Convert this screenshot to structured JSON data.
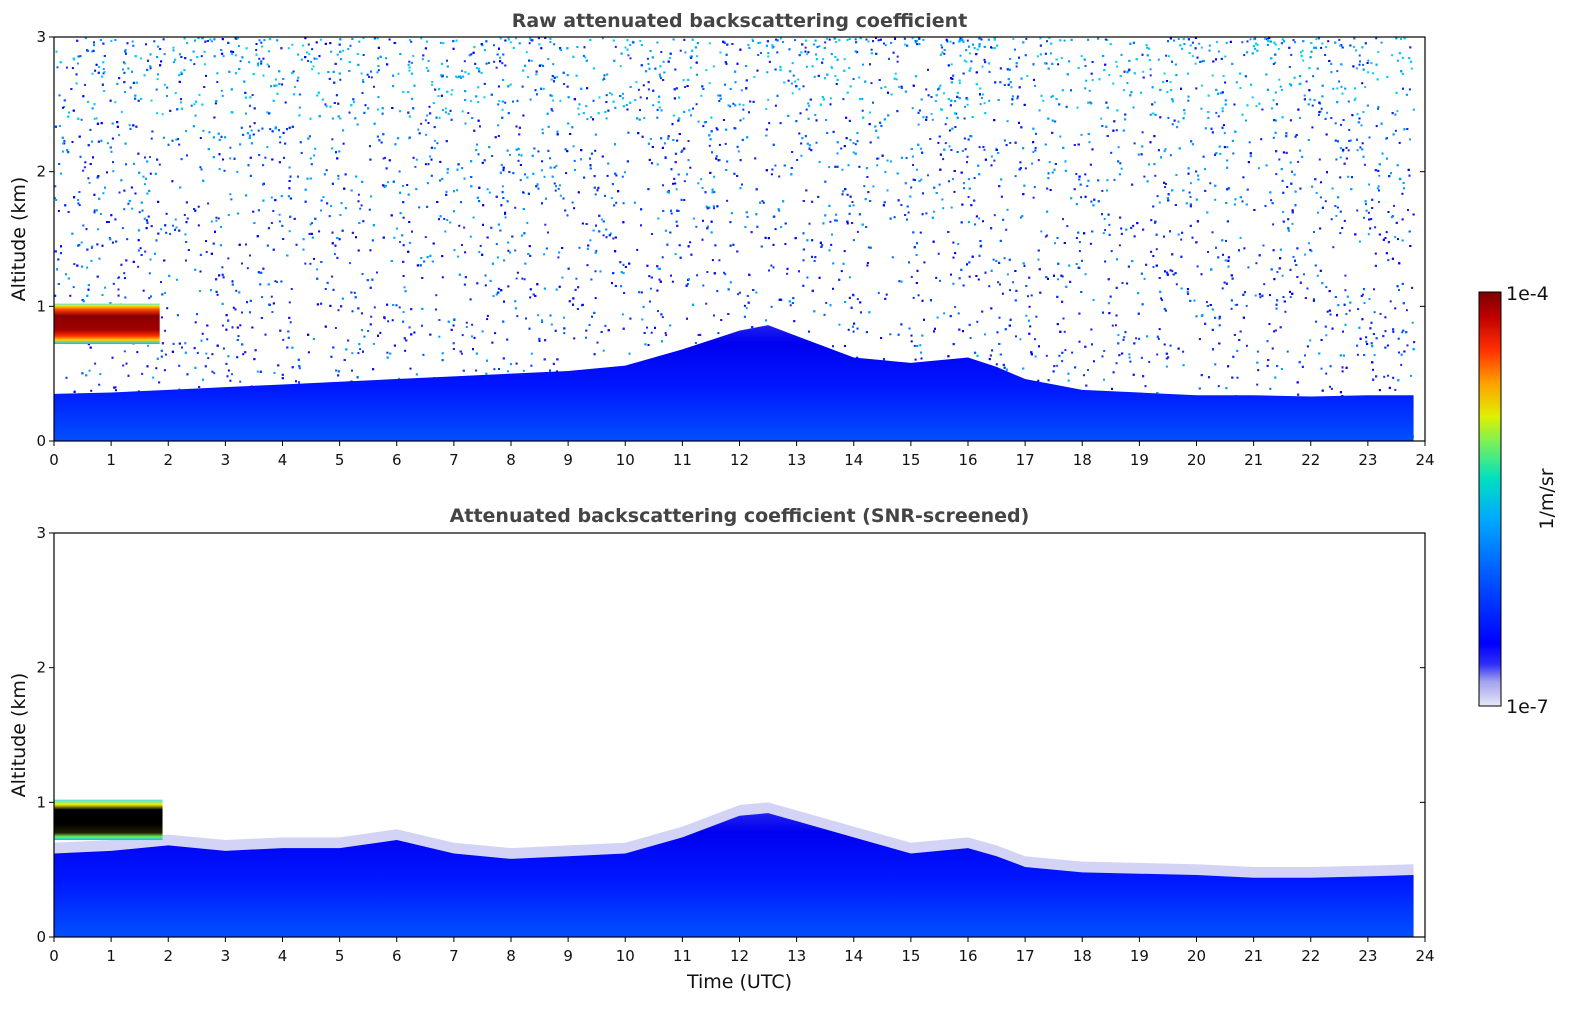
{
  "chart_data": [
    {
      "type": "heatmap",
      "title": "Raw attenuated backscattering coefficient",
      "xlabel": "",
      "ylabel": "Altitude (km)",
      "xlim": [
        0,
        24
      ],
      "ylim": [
        0,
        3
      ],
      "x_ticks": [
        "0",
        "1",
        "2",
        "3",
        "4",
        "5",
        "6",
        "7",
        "8",
        "9",
        "10",
        "11",
        "12",
        "13",
        "14",
        "15",
        "16",
        "17",
        "18",
        "19",
        "20",
        "21",
        "22",
        "23",
        "24"
      ],
      "y_ticks": [
        "0",
        "1",
        "2",
        "3"
      ],
      "data_end_time": 23.8,
      "noisy_upper_region": true,
      "boundary_layer_top_km": [
        [
          0,
          0.35
        ],
        [
          1,
          0.36
        ],
        [
          2,
          0.38
        ],
        [
          3,
          0.4
        ],
        [
          4,
          0.42
        ],
        [
          5,
          0.44
        ],
        [
          6,
          0.46
        ],
        [
          7,
          0.48
        ],
        [
          8,
          0.5
        ],
        [
          9,
          0.52
        ],
        [
          10,
          0.56
        ],
        [
          11,
          0.68
        ],
        [
          12,
          0.82
        ],
        [
          12.5,
          0.86
        ],
        [
          13,
          0.78
        ],
        [
          14,
          0.62
        ],
        [
          15,
          0.58
        ],
        [
          16,
          0.62
        ],
        [
          16.5,
          0.55
        ],
        [
          17,
          0.46
        ],
        [
          18,
          0.38
        ],
        [
          19,
          0.36
        ],
        [
          20,
          0.34
        ],
        [
          21,
          0.34
        ],
        [
          22,
          0.33
        ],
        [
          23,
          0.34
        ],
        [
          23.8,
          0.34
        ]
      ],
      "cloud_layer": {
        "time_start": 0,
        "time_end": 1.85,
        "alt_bottom_km": 0.72,
        "alt_top_km": 1.02
      }
    },
    {
      "type": "heatmap",
      "title": "Attenuated backscattering coefficient (SNR-screened)",
      "xlabel": "Time (UTC)",
      "ylabel": "Altitude (km)",
      "xlim": [
        0,
        24
      ],
      "ylim": [
        0,
        3
      ],
      "x_ticks": [
        "0",
        "1",
        "2",
        "3",
        "4",
        "5",
        "6",
        "7",
        "8",
        "9",
        "10",
        "11",
        "12",
        "13",
        "14",
        "15",
        "16",
        "17",
        "18",
        "19",
        "20",
        "21",
        "22",
        "23",
        "24"
      ],
      "y_ticks": [
        "0",
        "1",
        "2",
        "3"
      ],
      "data_end_time": 23.8,
      "noisy_upper_region": false,
      "boundary_layer_top_km": [
        [
          0,
          0.62
        ],
        [
          1,
          0.64
        ],
        [
          2,
          0.68
        ],
        [
          3,
          0.64
        ],
        [
          4,
          0.66
        ],
        [
          5,
          0.66
        ],
        [
          6,
          0.72
        ],
        [
          7,
          0.62
        ],
        [
          8,
          0.58
        ],
        [
          9,
          0.6
        ],
        [
          10,
          0.62
        ],
        [
          11,
          0.74
        ],
        [
          12,
          0.9
        ],
        [
          12.5,
          0.92
        ],
        [
          13,
          0.86
        ],
        [
          14,
          0.74
        ],
        [
          15,
          0.62
        ],
        [
          16,
          0.66
        ],
        [
          16.5,
          0.6
        ],
        [
          17,
          0.52
        ],
        [
          18,
          0.48
        ],
        [
          19,
          0.47
        ],
        [
          20,
          0.46
        ],
        [
          21,
          0.44
        ],
        [
          22,
          0.44
        ],
        [
          23,
          0.45
        ],
        [
          23.8,
          0.46
        ]
      ],
      "cloud_layer": {
        "time_start": 0,
        "time_end": 1.9,
        "alt_bottom_km": 0.72,
        "alt_top_km": 1.02
      }
    }
  ],
  "colorbar": {
    "label": "1/m/sr",
    "min_label": "1e-7",
    "max_label": "1e-4",
    "colors": [
      "#e8e8f8",
      "#c8c8f0",
      "#a0a0ee",
      "#7070f0",
      "#3030f8",
      "#0000ff",
      "#0030ff",
      "#0060ff",
      "#00a0ff",
      "#00d0f0",
      "#00e0b0",
      "#40f070",
      "#a0f030",
      "#e0f000",
      "#ffc000",
      "#ff8000",
      "#ff3000",
      "#e00000",
      "#b00000",
      "#7a0000"
    ]
  }
}
